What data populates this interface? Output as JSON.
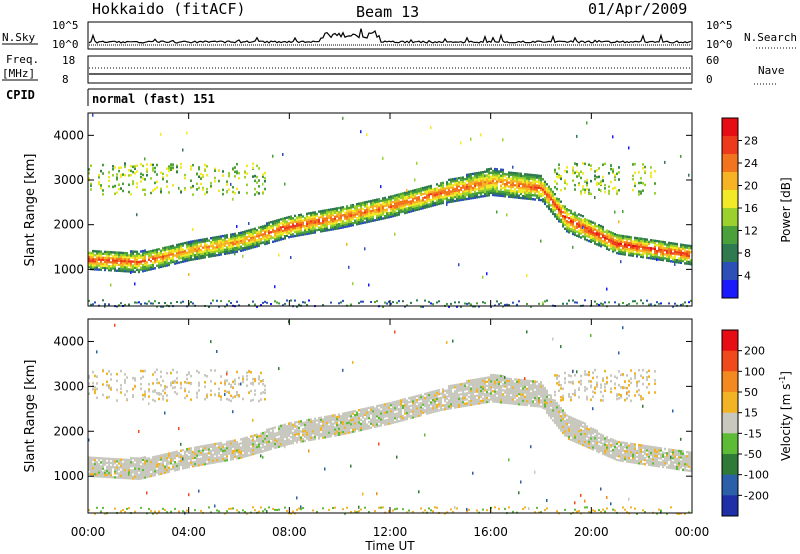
{
  "header": {
    "station": "Hokkaido (fitACF)",
    "beam": "Beam 13",
    "date": "01/Apr/2009"
  },
  "top_panels": {
    "nsky_label": "N.Sky",
    "nsky_ticks": [
      "10^5",
      "10^0"
    ],
    "nsearch_label": "N.Search",
    "nsearch_ticks": [
      "10^5",
      "10^0"
    ],
    "freq_label_1": "Freq.",
    "freq_label_2": "[MHz]",
    "freq_ticks": [
      "18",
      "8"
    ],
    "nave_label": "Nave",
    "nave_ticks": [
      "60",
      "0"
    ],
    "cpid_label": "CPID",
    "cpid_text": "normal (fast) 151"
  },
  "chart_data": [
    {
      "type": "heatmap",
      "title": "",
      "xlabel": "Time UT",
      "ylabel": "Slant Range [km]",
      "x_ticks": [
        "00:00",
        "04:00",
        "08:00",
        "12:00",
        "16:00",
        "20:00",
        "00:00"
      ],
      "y_ticks": [
        "1000",
        "2000",
        "3000",
        "4000"
      ],
      "ylim": [
        180,
        4500
      ],
      "colorbar": {
        "label": "Power [dB]",
        "ticks": [
          "4",
          "8",
          "12",
          "16",
          "20",
          "24",
          "28"
        ],
        "range": [
          0,
          30
        ],
        "colors": [
          "#1a1aff",
          "#2c4fb8",
          "#2f7a4f",
          "#4aa03a",
          "#9bd12d",
          "#f2ea28",
          "#f6b324",
          "#f2741f",
          "#ee3a1c",
          "#e60d14"
        ]
      },
      "band_main_echo_km": [
        {
          "t": 0,
          "center": 1200,
          "width": 350,
          "power": 26
        },
        {
          "t": 2,
          "center": 1150,
          "width": 380,
          "power": 24
        },
        {
          "t": 4,
          "center": 1400,
          "width": 350,
          "power": 22
        },
        {
          "t": 6,
          "center": 1600,
          "width": 350,
          "power": 22
        },
        {
          "t": 8,
          "center": 1950,
          "width": 400,
          "power": 26
        },
        {
          "t": 10,
          "center": 2150,
          "width": 400,
          "power": 24
        },
        {
          "t": 12,
          "center": 2400,
          "width": 400,
          "power": 24
        },
        {
          "t": 14,
          "center": 2700,
          "width": 400,
          "power": 25
        },
        {
          "t": 16,
          "center": 2950,
          "width": 500,
          "power": 22
        },
        {
          "t": 18,
          "center": 2800,
          "width": 450,
          "power": 25
        },
        {
          "t": 19,
          "center": 2100,
          "width": 450,
          "power": 26
        },
        {
          "t": 21,
          "center": 1550,
          "width": 350,
          "power": 28
        },
        {
          "t": 24,
          "center": 1300,
          "width": 350,
          "power": 26
        }
      ]
    },
    {
      "type": "heatmap",
      "title": "",
      "xlabel": "Time UT",
      "ylabel": "Slant Range [km]",
      "x_ticks": [
        "00:00",
        "04:00",
        "08:00",
        "12:00",
        "16:00",
        "20:00",
        "00:00"
      ],
      "y_ticks": [
        "1000",
        "2000",
        "3000",
        "4000"
      ],
      "ylim": [
        180,
        4500
      ],
      "colorbar": {
        "label": "Velocity [m s^-1]",
        "label_main": "Velocity [m s",
        "label_sup": "-1",
        "label_end": "]",
        "ticks": [
          "200",
          "100",
          "50",
          "15",
          "-15",
          "-50",
          "-100",
          "-200"
        ],
        "colors": [
          "#1f2fa8",
          "#2b5fa8",
          "#2e7a36",
          "#5dbb36",
          "#c8c8be",
          "#f2b324",
          "#f28a1f",
          "#f04a1c",
          "#e60d14"
        ]
      },
      "dominant_velocity_m_s": 0
    }
  ]
}
